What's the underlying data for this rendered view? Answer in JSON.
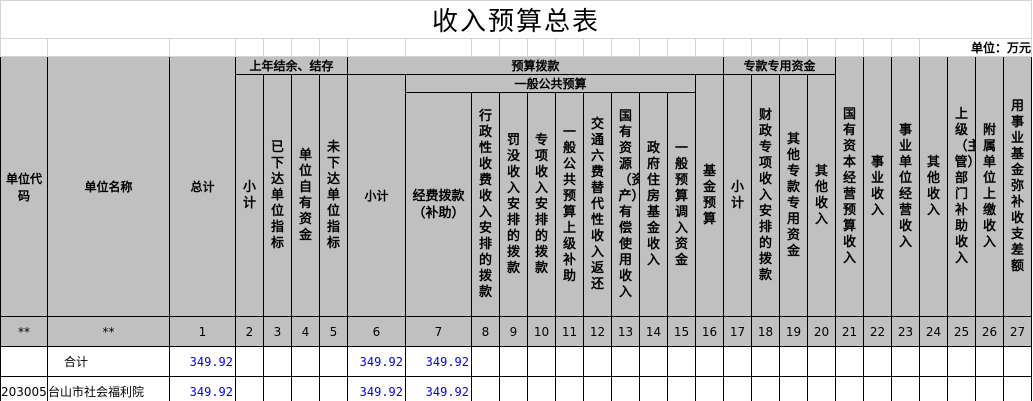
{
  "title": "收入预算总表",
  "unit": "单位：万元",
  "headers": {
    "unit_code": "单位代码",
    "unit_name": "单位名称",
    "total": "总计",
    "prev_year": "上年结余、结存",
    "prev_sub": [
      "小计",
      "已下达单位指标",
      "单位自有资金",
      "未下达单位指标"
    ],
    "budget": "预算拨款",
    "budget_subtotal": "小计",
    "general": "一般公共预算",
    "general_sub": [
      "经费拨款（补助）",
      "行政性收费收入安排的拨款",
      "罚没收入安排的拨款",
      "专项收入安排的拨款",
      "一般公共预算上级补助",
      "交通六费替代性收入返还",
      "国有资源（资产）有偿使用收入",
      "政府住房基金收入",
      "一般预算调入资金"
    ],
    "fund": "基金预算",
    "special": "专款专用资金",
    "special_sub": [
      "小计",
      "财政专项收入安排的拨款",
      "其他专款专用资金",
      "其他收入"
    ],
    "others": [
      "国有资本经营预算收入",
      "事业收入",
      "事业单位经营收入",
      "其他收入",
      "上级（主管）部门补助收入",
      "附属单位上缴收入",
      "用事业基金弥补收支差额"
    ]
  },
  "column_numbers": [
    "**",
    "**",
    "1",
    "2",
    "3",
    "4",
    "5",
    "6",
    "7",
    "8",
    "9",
    "10",
    "11",
    "12",
    "13",
    "14",
    "15",
    "16",
    "17",
    "18",
    "19",
    "20",
    "21",
    "22",
    "23",
    "24",
    "25",
    "26",
    "27"
  ],
  "rows": [
    {
      "code": "",
      "name": "合计",
      "values": {
        "1": "349.92",
        "6": "349.92",
        "7": "349.92"
      }
    },
    {
      "code": "203005",
      "name": "台山市社会福利院",
      "values": {
        "1": "349.92",
        "6": "349.92",
        "7": "349.92"
      }
    }
  ],
  "colors": {
    "header_bg": "#c0c0c0",
    "number_text": "#0000ff"
  }
}
